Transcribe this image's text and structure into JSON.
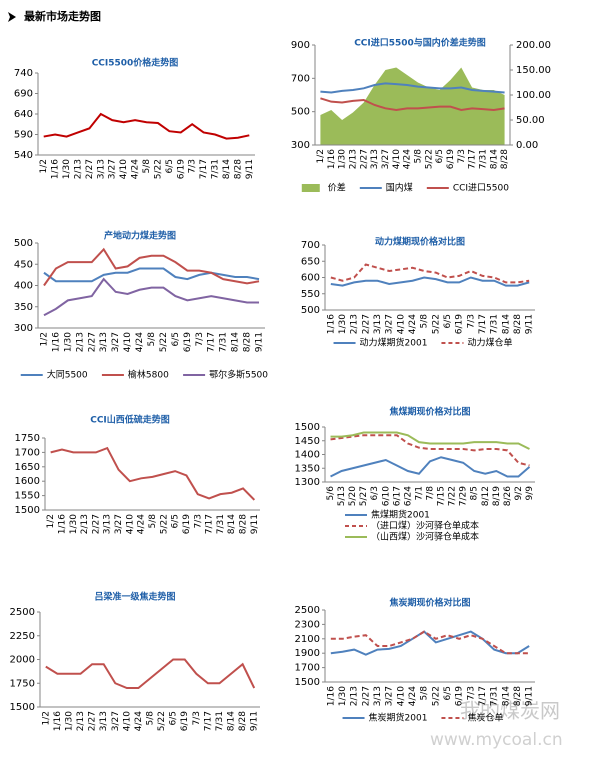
{
  "header": "最新市场走势图",
  "watermark": {
    "name": "我的煤炭网",
    "url": "www.mycoal.cn"
  },
  "chart_data": [
    {
      "type": "line",
      "title": "CCI5500价格走势图",
      "categories": [
        "1/2",
        "1/16",
        "1/30",
        "2/13",
        "2/27",
        "3/13",
        "3/27",
        "4/10",
        "4/24",
        "5/8",
        "5/22",
        "6/5",
        "6/19",
        "7/3",
        "7/17",
        "7/31",
        "8/14",
        "8/28",
        "9/11"
      ],
      "series": [
        {
          "name": null,
          "color": "#c00000",
          "values": [
            585,
            590,
            585,
            595,
            605,
            640,
            625,
            620,
            625,
            620,
            618,
            598,
            595,
            615,
            595,
            590,
            580,
            582,
            588
          ]
        }
      ],
      "ylim": [
        540,
        740
      ],
      "yticks": [
        540,
        590,
        640,
        690,
        740
      ]
    },
    {
      "type": "line",
      "title": "CCI进口5500与国内价差走势图",
      "categories": [
        "1/2",
        "1/16",
        "1/30",
        "2/13",
        "2/27",
        "3/13",
        "3/27",
        "4/10",
        "4/24",
        "5/8",
        "5/22",
        "6/5",
        "6/19",
        "7/3",
        "7/17",
        "7/31",
        "8/14",
        "8/28"
      ],
      "series": [
        {
          "name": "价差",
          "color": "#9bbb59",
          "fill": true,
          "axis": "y2",
          "values": [
            60,
            70,
            50,
            65,
            85,
            120,
            150,
            155,
            140,
            125,
            115,
            110,
            130,
            155,
            115,
            110,
            110,
            100
          ]
        },
        {
          "name": "国内煤",
          "color": "#4f81bd",
          "values": [
            620,
            615,
            625,
            630,
            640,
            660,
            670,
            665,
            660,
            650,
            645,
            640,
            640,
            645,
            630,
            625,
            620,
            615
          ]
        },
        {
          "name": "CCI进口5500",
          "color": "#c0504d",
          "values": [
            580,
            560,
            555,
            565,
            570,
            540,
            520,
            510,
            520,
            520,
            525,
            530,
            530,
            510,
            520,
            515,
            510,
            520
          ]
        }
      ],
      "ylim": [
        300,
        900
      ],
      "yticks": [
        300,
        500,
        700,
        900
      ],
      "y2lim": [
        0,
        200
      ],
      "y2ticks": [
        {
          "value": 0,
          "label": "0.00"
        },
        {
          "value": 50,
          "label": "50.00"
        },
        {
          "value": 100,
          "label": "100.00"
        },
        {
          "value": 150,
          "label": "150.00"
        },
        {
          "value": 200,
          "label": "200.00"
        }
      ],
      "legend": "bottom"
    },
    {
      "type": "line",
      "title": "产地动力煤走势图",
      "categories": [
        "1/2",
        "1/16",
        "1/30",
        "2/13",
        "2/27",
        "3/13",
        "3/27",
        "4/10",
        "4/24",
        "5/8",
        "5/22",
        "6/5",
        "6/19",
        "7/3",
        "7/17",
        "7/31",
        "8/14",
        "8/28",
        "9/11"
      ],
      "series": [
        {
          "name": "大同5500",
          "color": "#4f81bd",
          "values": [
            430,
            410,
            410,
            410,
            410,
            425,
            430,
            430,
            440,
            440,
            440,
            420,
            415,
            425,
            430,
            425,
            420,
            420,
            415
          ]
        },
        {
          "name": "榆林5800",
          "color": "#c0504d",
          "values": [
            400,
            440,
            455,
            455,
            455,
            485,
            440,
            445,
            465,
            470,
            470,
            455,
            435,
            435,
            430,
            415,
            410,
            405,
            410
          ]
        },
        {
          "name": "鄂尔多斯5500",
          "color": "#8064a2",
          "values": [
            330,
            345,
            365,
            370,
            375,
            415,
            385,
            380,
            390,
            395,
            395,
            375,
            365,
            370,
            375,
            370,
            365,
            360,
            360
          ]
        }
      ],
      "ylim": [
        300,
        500
      ],
      "yticks": [
        300,
        350,
        400,
        450,
        500
      ],
      "legend": "bottom"
    },
    {
      "type": "line",
      "title": "动力煤期现价格对比图",
      "categories": [
        "1/16",
        "1/30",
        "2/13",
        "2/27",
        "3/13",
        "3/27",
        "4/10",
        "4/24",
        "5/8",
        "5/22",
        "6/5",
        "6/19",
        "7/3",
        "7/17",
        "7/31",
        "8/14",
        "8/28",
        "9/11"
      ],
      "series": [
        {
          "name": "动力煤期货2001",
          "color": "#4f81bd",
          "values": [
            580,
            575,
            585,
            590,
            590,
            580,
            585,
            590,
            600,
            595,
            585,
            585,
            600,
            590,
            590,
            575,
            575,
            585
          ]
        },
        {
          "name": "动力煤仓单",
          "color": "#c0504d",
          "dash": true,
          "values": [
            600,
            590,
            600,
            640,
            630,
            620,
            625,
            630,
            620,
            615,
            600,
            605,
            620,
            605,
            600,
            585,
            585,
            590
          ]
        }
      ],
      "ylim": [
        500,
        700
      ],
      "yticks": [
        500,
        550,
        600,
        650,
        700
      ],
      "legend": "bottom"
    },
    {
      "type": "line",
      "title": "CCI山西低硫走势图",
      "categories": [
        "1/2",
        "1/16",
        "1/30",
        "2/13",
        "2/27",
        "3/13",
        "3/27",
        "4/10",
        "4/24",
        "5/8",
        "5/22",
        "6/5",
        "6/19",
        "7/3",
        "7/17",
        "7/31",
        "8/14",
        "8/28",
        "9/11"
      ],
      "series": [
        {
          "name": null,
          "color": "#c0504d",
          "values": [
            1700,
            1710,
            1700,
            1700,
            1700,
            1715,
            1640,
            1600,
            1610,
            1615,
            1625,
            1635,
            1620,
            1555,
            1540,
            1555,
            1560,
            1575,
            1535
          ]
        }
      ],
      "ylim": [
        1500,
        1750
      ],
      "yticks": [
        1500,
        1550,
        1600,
        1650,
        1700,
        1750
      ]
    },
    {
      "type": "line",
      "title": "焦煤期现价格对比图",
      "categories": [
        "5/6",
        "5/13",
        "5/20",
        "5/27",
        "6/3",
        "6/10",
        "6/17",
        "6/24",
        "7/1",
        "7/8",
        "7/15",
        "7/22",
        "7/29",
        "8/5",
        "8/12",
        "8/19",
        "8/26",
        "9/2",
        "9/9"
      ],
      "series": [
        {
          "name": "焦煤期货2001",
          "color": "#4f81bd",
          "values": [
            1320,
            1340,
            1350,
            1360,
            1370,
            1380,
            1360,
            1340,
            1330,
            1375,
            1390,
            1380,
            1370,
            1340,
            1330,
            1340,
            1320,
            1320,
            1355
          ]
        },
        {
          "name": "（进口煤）沙河驿仓单成本",
          "color": "#c0504d",
          "dash": true,
          "values": [
            1455,
            1460,
            1465,
            1470,
            1470,
            1470,
            1470,
            1440,
            1425,
            1420,
            1420,
            1420,
            1420,
            1415,
            1420,
            1420,
            1415,
            1370,
            1360
          ]
        },
        {
          "name": "（山西煤）沙河驿仓单成本",
          "color": "#9bbb59",
          "values": [
            1465,
            1465,
            1470,
            1480,
            1480,
            1480,
            1480,
            1470,
            1445,
            1440,
            1440,
            1440,
            1440,
            1445,
            1445,
            1445,
            1440,
            1440,
            1420
          ]
        }
      ],
      "ylim": [
        1300,
        1500
      ],
      "yticks": [
        1300,
        1350,
        1400,
        1450,
        1500
      ],
      "legend": "bottom"
    },
    {
      "type": "line",
      "title": "吕梁准一级焦走势图",
      "categories": [
        "1/2",
        "1/16",
        "1/30",
        "2/13",
        "2/27",
        "3/13",
        "3/27",
        "4/10",
        "4/24",
        "5/8",
        "5/22",
        "6/5",
        "6/19",
        "7/3",
        "7/17",
        "7/31",
        "8/14",
        "8/28",
        "9/11"
      ],
      "series": [
        {
          "name": null,
          "color": "#c0504d",
          "values": [
            1925,
            1850,
            1850,
            1850,
            1950,
            1950,
            1750,
            1700,
            1700,
            1800,
            1900,
            2000,
            2000,
            1850,
            1750,
            1750,
            1850,
            1950,
            1700
          ]
        }
      ],
      "ylim": [
        1500,
        2500
      ],
      "yticks": [
        1500,
        1750,
        2000,
        2250,
        2500
      ]
    },
    {
      "type": "line",
      "title": "焦炭期现价格对比图",
      "categories": [
        "1/16",
        "1/30",
        "2/13",
        "2/27",
        "3/13",
        "3/27",
        "4/10",
        "4/24",
        "5/8",
        "5/22",
        "6/5",
        "6/19",
        "7/3",
        "7/17",
        "7/31",
        "8/14",
        "8/28",
        "9/11"
      ],
      "series": [
        {
          "name": "焦炭期货2001",
          "color": "#4f81bd",
          "values": [
            1900,
            1920,
            1950,
            1880,
            1950,
            1960,
            2000,
            2100,
            2200,
            2050,
            2100,
            2150,
            2200,
            2100,
            1950,
            1900,
            1900,
            2000
          ]
        },
        {
          "name": "焦炭仓单",
          "color": "#c0504d",
          "dash": true,
          "values": [
            2100,
            2100,
            2130,
            2150,
            2000,
            2000,
            2050,
            2100,
            2200,
            2100,
            2150,
            2100,
            2150,
            2100,
            2000,
            1900,
            1900,
            1900
          ]
        }
      ],
      "ylim": [
        1500,
        2500
      ],
      "yticks": [
        1500,
        1700,
        1900,
        2100,
        2300,
        2500
      ],
      "legend": "bottom"
    }
  ]
}
